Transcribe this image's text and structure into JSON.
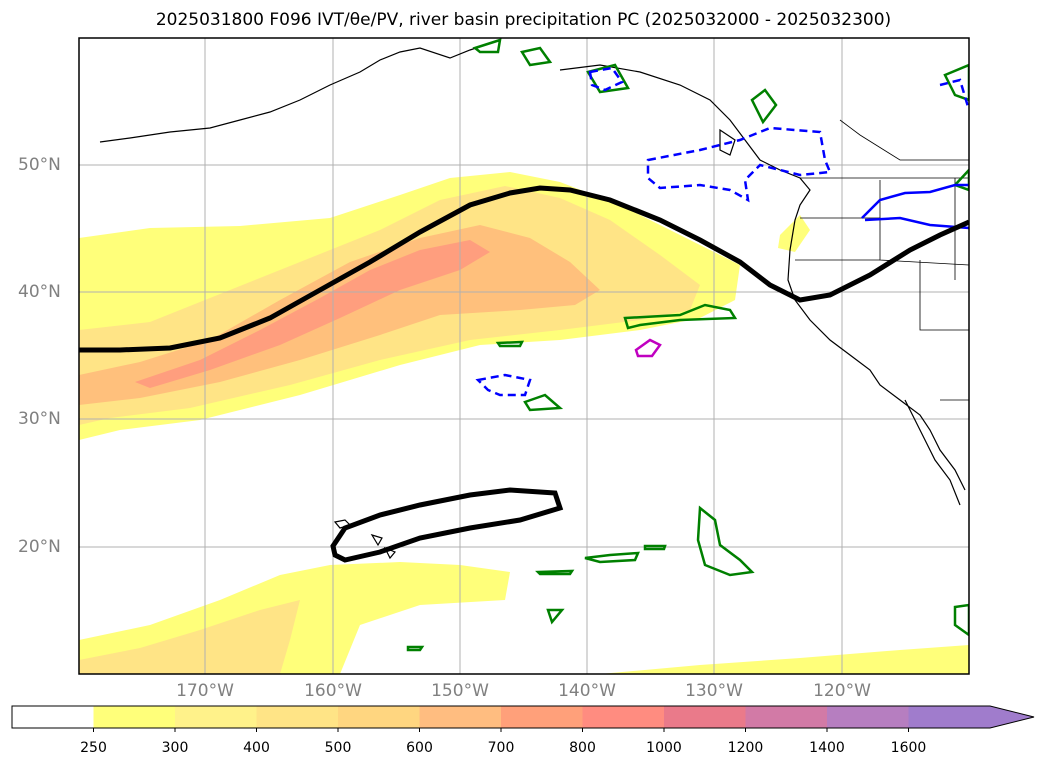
{
  "title": "2025031800 F096 IVT/θe/PV, river basin precipitation PC (2025032000 - 2025032300)",
  "map": {
    "lat_ticks": [
      "50°N",
      "40°N",
      "30°N",
      "20°N"
    ],
    "lon_ticks": [
      "170°W",
      "160°W",
      "150°W",
      "140°W",
      "130°W",
      "120°W"
    ],
    "gridlines": true,
    "extent_lon": [
      -180,
      -110
    ],
    "extent_lat": [
      10,
      60
    ]
  },
  "colorbar": {
    "levels": [
      "250",
      "300",
      "400",
      "500",
      "600",
      "700",
      "800",
      "1000",
      "1200",
      "1400",
      "1600"
    ],
    "colors": [
      "#ffffff",
      "#ffff7a",
      "#fff28a",
      "#ffe486",
      "#ffd680",
      "#ffbd80",
      "#ffa07a",
      "#ff8c80",
      "#ea7a8a",
      "#d27aa6",
      "#b67ec0",
      "#a07ccc"
    ],
    "extend": "max"
  },
  "colors": {
    "ivt_light": "#ffff7a",
    "ivt_mid": "#ffe486",
    "ivt_orange": "#ffc07c",
    "ivt_core": "#ff9a7e",
    "pv_contour": "#000000",
    "green_contour": "#008000",
    "blue_contour": "#0000ff",
    "magenta_contour": "#c000c0"
  }
}
